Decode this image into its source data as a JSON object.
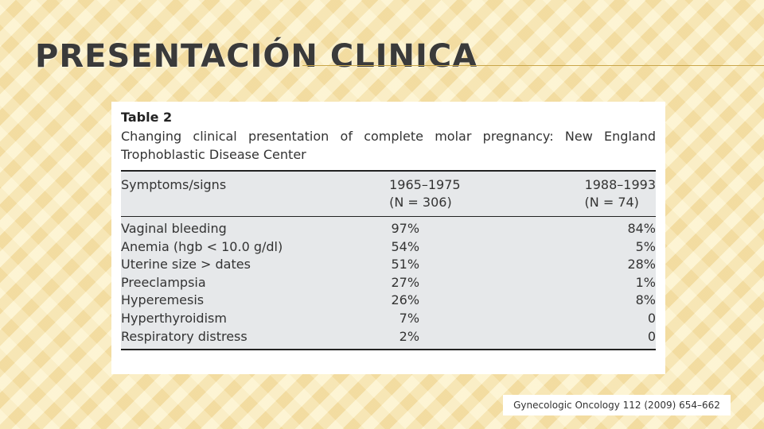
{
  "slide": {
    "title": "Presentación clinica"
  },
  "table": {
    "label": "Table 2",
    "caption": "Changing clinical presentation of complete molar pregnancy: New England Trophoblastic Disease Center",
    "columns": [
      {
        "name": "Symptoms/signs",
        "sub": ""
      },
      {
        "name": "1965–1975",
        "sub": "(N = 306)"
      },
      {
        "name": "1988–1993",
        "sub": "(N = 74)"
      }
    ],
    "rows": [
      {
        "sign": "Vaginal bleeding",
        "p1": "97%",
        "p2": "84%"
      },
      {
        "sign": "Anemia (hgb < 10.0 g/dl)",
        "p1": "54%",
        "p2": "5%"
      },
      {
        "sign": "Uterine size > dates",
        "p1": "51%",
        "p2": "28%"
      },
      {
        "sign": "Preeclampsia",
        "p1": "27%",
        "p2": "1%"
      },
      {
        "sign": "Hyperemesis",
        "p1": "26%",
        "p2": "8%"
      },
      {
        "sign": "Hyperthyroidism",
        "p1": "7%",
        "p2": "0"
      },
      {
        "sign": "Respiratory distress",
        "p1": "2%",
        "p2": "0"
      }
    ]
  },
  "citation": "Gynecologic Oncology 112 (2009) 654–662"
}
